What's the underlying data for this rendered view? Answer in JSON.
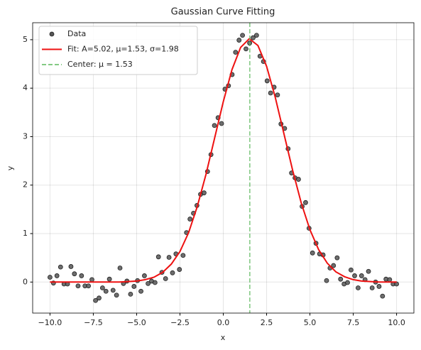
{
  "chart_data": {
    "type": "scatter",
    "title": "Gaussian Curve Fitting",
    "x_label": "x",
    "y_label": "y",
    "xlim": [
      -11,
      11
    ],
    "ylim": [
      -0.64,
      5.35
    ],
    "xticks": [
      {
        "value": -10,
        "label": "−10.0"
      },
      {
        "value": -7.5,
        "label": "−7.5"
      },
      {
        "value": -5,
        "label": "−5.0"
      },
      {
        "value": -2.5,
        "label": "−2.5"
      },
      {
        "value": 0,
        "label": "0.0"
      },
      {
        "value": 2.5,
        "label": "2.5"
      },
      {
        "value": 5,
        "label": "5.0"
      },
      {
        "value": 7.5,
        "label": "7.5"
      },
      {
        "value": 10,
        "label": "10.0"
      }
    ],
    "yticks": [
      0,
      1,
      2,
      3,
      4,
      5
    ],
    "grid": true,
    "legend": "upper left",
    "series": [
      {
        "name": "Data",
        "type": "scatter",
        "color": "#555555",
        "x": [
          -10,
          -9.8,
          -9.6,
          -9.39,
          -9.19,
          -8.99,
          -8.79,
          -8.59,
          -8.38,
          -8.18,
          -7.98,
          -7.78,
          -7.58,
          -7.37,
          -7.17,
          -6.97,
          -6.77,
          -6.57,
          -6.36,
          -6.16,
          -5.96,
          -5.76,
          -5.56,
          -5.35,
          -5.15,
          -4.95,
          -4.75,
          -4.55,
          -4.34,
          -4.14,
          -3.94,
          -3.74,
          -3.54,
          -3.33,
          -3.13,
          -2.93,
          -2.73,
          -2.53,
          -2.32,
          -2.12,
          -1.92,
          -1.72,
          -1.52,
          -1.31,
          -1.11,
          -0.91,
          -0.71,
          -0.51,
          -0.3,
          -0.1,
          0.1,
          0.3,
          0.51,
          0.71,
          0.91,
          1.11,
          1.31,
          1.52,
          1.72,
          1.92,
          2.12,
          2.32,
          2.53,
          2.73,
          2.93,
          3.13,
          3.33,
          3.54,
          3.74,
          3.94,
          4.14,
          4.34,
          4.55,
          4.75,
          4.95,
          5.15,
          5.35,
          5.56,
          5.76,
          5.96,
          6.16,
          6.36,
          6.57,
          6.77,
          6.97,
          7.17,
          7.37,
          7.58,
          7.78,
          7.98,
          8.18,
          8.38,
          8.59,
          8.79,
          8.99,
          9.19,
          9.39,
          9.6,
          9.8,
          10
        ],
        "values": [
          0.1,
          -0.02,
          0.13,
          0.31,
          -0.04,
          -0.04,
          0.32,
          0.17,
          -0.08,
          0.13,
          -0.08,
          -0.08,
          0.05,
          -0.38,
          -0.33,
          -0.12,
          -0.19,
          0.06,
          -0.17,
          -0.27,
          0.29,
          -0.03,
          0.02,
          -0.25,
          -0.09,
          0.03,
          -0.19,
          0.13,
          -0.03,
          0.02,
          -0.01,
          0.52,
          0.2,
          0.07,
          0.51,
          0.19,
          0.58,
          0.26,
          0.55,
          1.02,
          1.3,
          1.42,
          1.58,
          1.81,
          1.84,
          2.28,
          2.63,
          3.23,
          3.39,
          3.27,
          3.98,
          4.05,
          4.28,
          4.74,
          4.99,
          5.09,
          4.81,
          4.93,
          5.04,
          5.09,
          4.66,
          4.55,
          4.15,
          3.9,
          4.02,
          3.86,
          3.26,
          3.17,
          2.75,
          2.25,
          2.15,
          2.12,
          1.56,
          1.64,
          1.11,
          0.6,
          0.8,
          0.58,
          0.56,
          0.03,
          0.29,
          0.34,
          0.5,
          0.06,
          -0.04,
          -0.01,
          0.25,
          0.13,
          -0.12,
          0.13,
          0.05,
          0.22,
          -0.12,
          0.0,
          -0.09,
          -0.29,
          0.06,
          0.05,
          -0.04,
          -0.04
        ]
      },
      {
        "name": "Fit: A=5.02, μ=1.53, σ=1.98",
        "type": "line",
        "color": "#ee1111",
        "x": [
          -10,
          -9.5,
          -9,
          -8.5,
          -8,
          -7.5,
          -7,
          -6.5,
          -6,
          -5.5,
          -5,
          -4.5,
          -4,
          -3.5,
          -3,
          -2.5,
          -2,
          -1.5,
          -1,
          -0.5,
          0,
          0.5,
          1,
          1.5,
          2,
          2.5,
          3,
          3.5,
          4,
          4.5,
          5,
          5.5,
          6,
          6.5,
          7,
          7.5,
          8,
          8.5,
          9,
          9.5,
          10
        ],
        "values": [
          0,
          0,
          0,
          0,
          0,
          0,
          0,
          0,
          0,
          0.01,
          0.02,
          0.05,
          0.1,
          0.2,
          0.37,
          0.63,
          1.02,
          1.56,
          2.22,
          2.97,
          3.72,
          4.38,
          4.84,
          5.02,
          4.88,
          4.45,
          3.81,
          3.06,
          2.31,
          1.63,
          1.08,
          0.67,
          0.39,
          0.21,
          0.11,
          0.05,
          0.02,
          0.01,
          0,
          0,
          0
        ]
      },
      {
        "name": "Center: μ = 1.53",
        "type": "vline",
        "color": "#5cb85c",
        "x": 1.53
      }
    ]
  }
}
